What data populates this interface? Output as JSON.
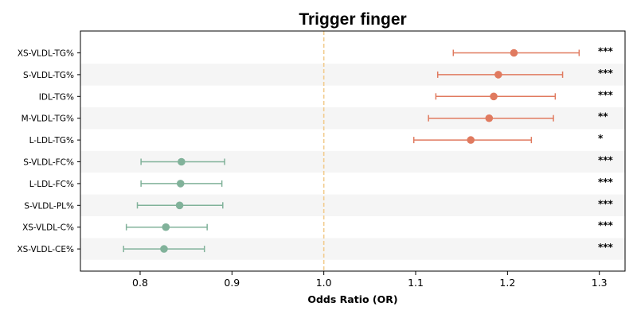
{
  "chart_data": {
    "type": "forest",
    "title": "Trigger finger",
    "xlabel": "Odds Ratio (OR)",
    "xlim": [
      0.735,
      1.328
    ],
    "xticks": [
      0.8,
      0.9,
      1.0,
      1.1,
      1.2,
      1.3
    ],
    "xtick_labels": [
      "0.8",
      "0.9",
      "1.0",
      "1.1",
      "1.2",
      "1.3"
    ],
    "reference_line": 1.0,
    "colors": {
      "positive": "#e07a5f",
      "negative": "#81b29a",
      "reference": "#f2cc8f",
      "band": "#f5f5f5"
    },
    "rows": [
      {
        "label": "XS-VLDL-TG%",
        "or": 1.207,
        "lo": 1.141,
        "hi": 1.278,
        "sig": "***"
      },
      {
        "label": "S-VLDL-TG%",
        "or": 1.19,
        "lo": 1.124,
        "hi": 1.26,
        "sig": "***"
      },
      {
        "label": "IDL-TG%",
        "or": 1.185,
        "lo": 1.122,
        "hi": 1.252,
        "sig": "***"
      },
      {
        "label": "M-VLDL-TG%",
        "or": 1.18,
        "lo": 1.114,
        "hi": 1.25,
        "sig": "**"
      },
      {
        "label": "L-LDL-TG%",
        "or": 1.16,
        "lo": 1.098,
        "hi": 1.226,
        "sig": "*"
      },
      {
        "label": "S-VLDL-FC%",
        "or": 0.845,
        "lo": 0.801,
        "hi": 0.892,
        "sig": "***"
      },
      {
        "label": "L-LDL-FC%",
        "or": 0.844,
        "lo": 0.801,
        "hi": 0.889,
        "sig": "***"
      },
      {
        "label": "S-VLDL-PL%",
        "or": 0.843,
        "lo": 0.797,
        "hi": 0.89,
        "sig": "***"
      },
      {
        "label": "XS-VLDL-C%",
        "or": 0.828,
        "lo": 0.785,
        "hi": 0.873,
        "sig": "***"
      },
      {
        "label": "XS-VLDL-CE%",
        "or": 0.826,
        "lo": 0.782,
        "hi": 0.87,
        "sig": "***"
      }
    ]
  }
}
